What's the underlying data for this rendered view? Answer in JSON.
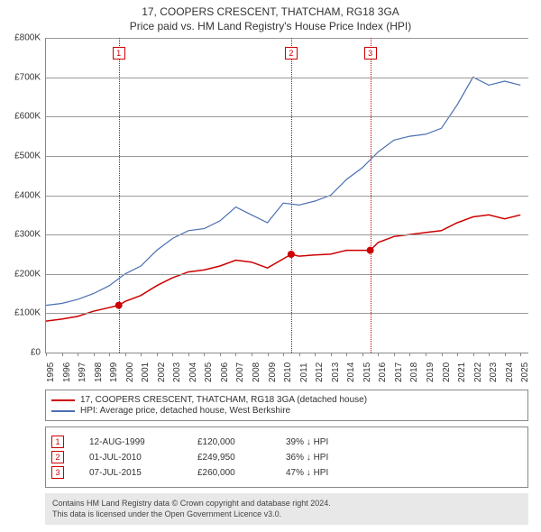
{
  "title": {
    "line1": "17, COOPERS CRESCENT, THATCHAM, RG18 3GA",
    "line2": "Price paid vs. HM Land Registry's House Price Index (HPI)"
  },
  "chart": {
    "type": "line",
    "background_color": "#ffffff",
    "grid_color": "#999999",
    "axis_color": "#888888",
    "x": {
      "min": 1995,
      "max": 2025.5,
      "labels": [
        1995,
        1996,
        1997,
        1998,
        1999,
        2000,
        2001,
        2002,
        2003,
        2004,
        2005,
        2006,
        2007,
        2008,
        2009,
        2010,
        2011,
        2012,
        2013,
        2014,
        2015,
        2016,
        2017,
        2018,
        2019,
        2020,
        2021,
        2022,
        2023,
        2024,
        2025
      ]
    },
    "y": {
      "min": 0,
      "max": 800000,
      "step": 100000,
      "prefix": "£",
      "suffix": "K",
      "divisor": 1000
    },
    "series": [
      {
        "id": "property",
        "label": "17, COOPERS CRESCENT, THATCHAM, RG18 3GA (detached house)",
        "color": "#cc0000",
        "width": 1.5,
        "points": [
          [
            1995,
            80000
          ],
          [
            1996,
            85000
          ],
          [
            1997,
            92000
          ],
          [
            1998,
            105000
          ],
          [
            1999.6,
            120000
          ],
          [
            2000,
            130000
          ],
          [
            2001,
            145000
          ],
          [
            2002,
            170000
          ],
          [
            2003,
            190000
          ],
          [
            2004,
            205000
          ],
          [
            2005,
            210000
          ],
          [
            2006,
            220000
          ],
          [
            2007,
            235000
          ],
          [
            2008,
            230000
          ],
          [
            2009,
            215000
          ],
          [
            2010.5,
            249950
          ],
          [
            2011,
            245000
          ],
          [
            2012,
            248000
          ],
          [
            2013,
            250000
          ],
          [
            2014,
            260000
          ],
          [
            2015.5,
            260000
          ],
          [
            2016,
            280000
          ],
          [
            2017,
            295000
          ],
          [
            2018,
            300000
          ],
          [
            2019,
            305000
          ],
          [
            2020,
            310000
          ],
          [
            2021,
            330000
          ],
          [
            2022,
            345000
          ],
          [
            2023,
            350000
          ],
          [
            2024,
            340000
          ],
          [
            2025,
            350000
          ]
        ]
      },
      {
        "id": "hpi",
        "label": "HPI: Average price, detached house, West Berkshire",
        "color": "#4a6fb3",
        "width": 1.2,
        "points": [
          [
            1995,
            120000
          ],
          [
            1996,
            125000
          ],
          [
            1997,
            135000
          ],
          [
            1998,
            150000
          ],
          [
            1999,
            170000
          ],
          [
            2000,
            200000
          ],
          [
            2001,
            220000
          ],
          [
            2002,
            260000
          ],
          [
            2003,
            290000
          ],
          [
            2004,
            310000
          ],
          [
            2005,
            315000
          ],
          [
            2006,
            335000
          ],
          [
            2007,
            370000
          ],
          [
            2008,
            350000
          ],
          [
            2009,
            330000
          ],
          [
            2010,
            380000
          ],
          [
            2011,
            375000
          ],
          [
            2012,
            385000
          ],
          [
            2013,
            400000
          ],
          [
            2014,
            440000
          ],
          [
            2015,
            470000
          ],
          [
            2016,
            510000
          ],
          [
            2017,
            540000
          ],
          [
            2018,
            550000
          ],
          [
            2019,
            555000
          ],
          [
            2020,
            570000
          ],
          [
            2021,
            630000
          ],
          [
            2022,
            700000
          ],
          [
            2023,
            680000
          ],
          [
            2024,
            690000
          ],
          [
            2025,
            680000
          ]
        ]
      }
    ],
    "markers": [
      {
        "n": "1",
        "year": 1999.6,
        "y": 120000,
        "color": "#cc0000"
      },
      {
        "n": "2",
        "year": 2010.5,
        "y": 249950,
        "color": "#cc0000"
      },
      {
        "n": "3",
        "year": 2015.5,
        "y": 260000,
        "color": "#cc0000"
      }
    ]
  },
  "events": [
    {
      "n": "1",
      "date": "12-AUG-1999",
      "price": "£120,000",
      "delta": "39% ↓ HPI",
      "color": "#cc0000"
    },
    {
      "n": "2",
      "date": "01-JUL-2010",
      "price": "£249,950",
      "delta": "36% ↓ HPI",
      "color": "#cc0000"
    },
    {
      "n": "3",
      "date": "07-JUL-2015",
      "price": "£260,000",
      "delta": "47% ↓ HPI",
      "color": "#cc0000"
    }
  ],
  "attribution": {
    "line1": "Contains HM Land Registry data © Crown copyright and database right 2024.",
    "line2": "This data is licensed under the Open Government Licence v3.0."
  }
}
